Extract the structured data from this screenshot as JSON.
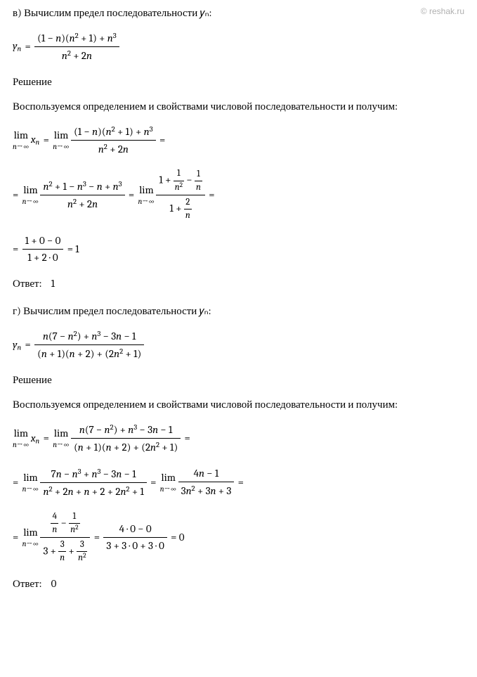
{
  "watermark": "© reshak.ru",
  "partV": {
    "title": "в) Вычислим предел последовательности 𝑦ₙ:",
    "solutionLabel": "Решение",
    "methodText": "Воспользуемся определением и свойствами числовой последовательности и получим:",
    "answerLabel": "Ответ:",
    "answerValue": "1"
  },
  "partG": {
    "title": "г) Вычислим предел последовательности 𝑦ₙ:",
    "solutionLabel": "Решение",
    "methodText": "Воспользуемся определением и свойствами числовой последовательности и получим:",
    "answerLabel": "Ответ:",
    "answerValue": "0"
  },
  "colors": {
    "text": "#000000",
    "watermark": "#b0b0b0",
    "background": "#ffffff"
  }
}
